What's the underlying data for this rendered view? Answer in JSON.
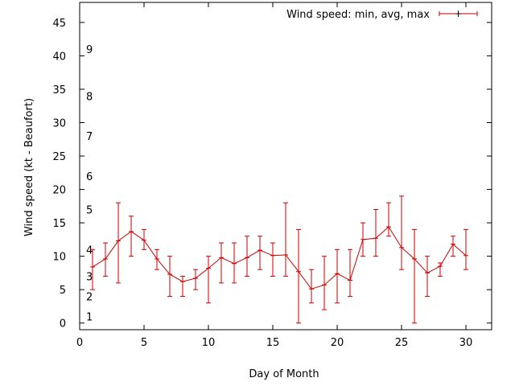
{
  "chart_data": {
    "type": "line",
    "xlabel": "Day of Month",
    "ylabel": "Wind speed (kt - Beaufort)",
    "xlim": [
      0,
      32
    ],
    "ylim": [
      -1,
      48
    ],
    "xticks": [
      0,
      5,
      10,
      15,
      20,
      25,
      30
    ],
    "yticks": [
      0,
      5,
      10,
      15,
      20,
      25,
      30,
      35,
      40,
      45
    ],
    "grid": false,
    "legend_position": "top-right",
    "beaufort_labels": [
      {
        "label": "1",
        "value": 1
      },
      {
        "label": "2",
        "value": 4
      },
      {
        "label": "3",
        "value": 7
      },
      {
        "label": "4",
        "value": 11
      },
      {
        "label": "5",
        "value": 17
      },
      {
        "label": "6",
        "value": 22
      },
      {
        "label": "7",
        "value": 28
      },
      {
        "label": "8",
        "value": 34
      },
      {
        "label": "9",
        "value": 41
      }
    ],
    "series": [
      {
        "name": "Wind speed: min, avg, max",
        "color": "#cc0000",
        "x": [
          1,
          2,
          3,
          4,
          5,
          6,
          7,
          8,
          9,
          10,
          11,
          12,
          13,
          14,
          15,
          16,
          17,
          18,
          19,
          20,
          21,
          22,
          23,
          24,
          25,
          26,
          27,
          28,
          29,
          30
        ],
        "avg": [
          8.4,
          9.6,
          12.3,
          13.7,
          12.4,
          9.6,
          7.3,
          6.2,
          6.7,
          8.2,
          9.8,
          8.9,
          9.8,
          10.9,
          10.1,
          10.2,
          7.7,
          5.1,
          5.7,
          7.4,
          6.4,
          12.5,
          12.7,
          14.4,
          11.3,
          9.6,
          7.5,
          8.5,
          11.8,
          10.1
        ],
        "min": [
          5,
          7,
          6,
          10,
          11,
          8,
          4,
          4,
          5,
          3,
          6,
          6,
          7,
          8,
          7,
          7,
          0,
          3,
          2,
          3,
          4,
          10,
          10,
          13,
          8,
          0,
          4,
          7,
          10,
          8
        ],
        "max": [
          11,
          12,
          18,
          16,
          14,
          11,
          10,
          7,
          8,
          10,
          12,
          12,
          13,
          13,
          12,
          18,
          14,
          8,
          10,
          11,
          11,
          15,
          17,
          18,
          19,
          14,
          10,
          9,
          13,
          14
        ]
      }
    ]
  }
}
